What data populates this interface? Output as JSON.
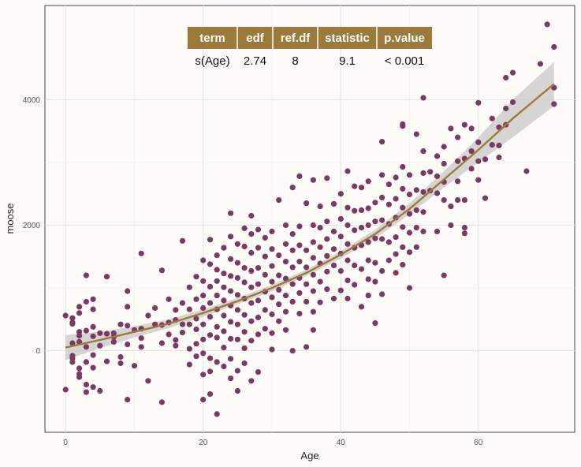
{
  "chart_data": {
    "type": "scatter",
    "xlabel": "Age",
    "ylabel": "moose",
    "xlim": [
      -3,
      74
    ],
    "ylim": [
      -1300,
      5500
    ],
    "x_ticks": [
      0,
      20,
      40,
      60
    ],
    "y_ticks": [
      0,
      2000,
      4000
    ],
    "grid": true,
    "colors": {
      "points": "#7b3a63",
      "smooth_line": "#9c7a3c",
      "ribbon": "#c8c8c8",
      "table_header": "#9c7a3c",
      "background": "#fdfcf8"
    },
    "smooth": {
      "x": [
        0,
        5,
        10,
        15,
        20,
        25,
        30,
        35,
        40,
        45,
        50,
        55,
        60,
        65,
        71
      ],
      "y": [
        50,
        170,
        300,
        430,
        600,
        790,
        1000,
        1240,
        1530,
        1860,
        2260,
        2730,
        3200,
        3700,
        4250
      ],
      "lower": [
        -150,
        40,
        210,
        360,
        540,
        740,
        950,
        1190,
        1470,
        1790,
        2170,
        2600,
        3000,
        3400,
        3900
      ],
      "upper": [
        250,
        300,
        390,
        500,
        660,
        840,
        1050,
        1290,
        1590,
        1930,
        2350,
        2860,
        3400,
        4000,
        4600
      ]
    },
    "table": {
      "columns": [
        "term",
        "edf",
        "ref.df",
        "statistic",
        "p.value"
      ],
      "rows": [
        [
          "s(Age)",
          "2.74",
          "8",
          "9.1",
          "< 0.001"
        ]
      ]
    },
    "points": [
      [
        0,
        560
      ],
      [
        0,
        -620
      ],
      [
        1,
        430
      ],
      [
        1,
        120
      ],
      [
        1,
        -80
      ],
      [
        1,
        -120
      ],
      [
        1,
        -180
      ],
      [
        1,
        450
      ],
      [
        1,
        520
      ],
      [
        2,
        300
      ],
      [
        2,
        140
      ],
      [
        2,
        -280
      ],
      [
        2,
        -420
      ],
      [
        2,
        -370
      ],
      [
        2,
        600
      ],
      [
        2,
        700
      ],
      [
        2,
        240
      ],
      [
        3,
        -540
      ],
      [
        3,
        -660
      ],
      [
        3,
        -180
      ],
      [
        3,
        60
      ],
      [
        3,
        320
      ],
      [
        3,
        780
      ],
      [
        3,
        1200
      ],
      [
        4,
        820
      ],
      [
        4,
        660
      ],
      [
        4,
        380
      ],
      [
        4,
        230
      ],
      [
        4,
        -70
      ],
      [
        4,
        -270
      ],
      [
        4,
        -580
      ],
      [
        5,
        280
      ],
      [
        5,
        80
      ],
      [
        5,
        -640
      ],
      [
        6,
        1180
      ],
      [
        6,
        270
      ],
      [
        6,
        -170
      ],
      [
        7,
        220
      ],
      [
        7,
        280
      ],
      [
        7,
        140
      ],
      [
        8,
        420
      ],
      [
        8,
        -100
      ],
      [
        8,
        -200
      ],
      [
        9,
        950
      ],
      [
        9,
        700
      ],
      [
        9,
        400
      ],
      [
        9,
        100
      ],
      [
        9,
        -780
      ],
      [
        10,
        330
      ],
      [
        10,
        -240
      ],
      [
        11,
        1550
      ],
      [
        11,
        350
      ],
      [
        11,
        200
      ],
      [
        11,
        60
      ],
      [
        12,
        560
      ],
      [
        12,
        -480
      ],
      [
        13,
        680
      ],
      [
        13,
        420
      ],
      [
        14,
        1280
      ],
      [
        14,
        410
      ],
      [
        14,
        120
      ],
      [
        14,
        -820
      ],
      [
        15,
        820
      ],
      [
        15,
        450
      ],
      [
        15,
        260
      ],
      [
        16,
        170
      ],
      [
        16,
        650
      ],
      [
        16,
        490
      ],
      [
        16,
        80
      ],
      [
        17,
        760
      ],
      [
        17,
        1750
      ],
      [
        17,
        420
      ],
      [
        17,
        290
      ],
      [
        18,
        30
      ],
      [
        18,
        420
      ],
      [
        18,
        660
      ],
      [
        18,
        1010
      ],
      [
        18,
        -220
      ],
      [
        19,
        1180
      ],
      [
        19,
        820
      ],
      [
        19,
        510
      ],
      [
        19,
        340
      ],
      [
        19,
        110
      ],
      [
        19,
        -90
      ],
      [
        20,
        1440
      ],
      [
        20,
        1110
      ],
      [
        20,
        880
      ],
      [
        20,
        680
      ],
      [
        20,
        420
      ],
      [
        20,
        180
      ],
      [
        20,
        -40
      ],
      [
        20,
        -380
      ],
      [
        20,
        -780
      ],
      [
        21,
        1770
      ],
      [
        21,
        1380
      ],
      [
        21,
        1020
      ],
      [
        21,
        760
      ],
      [
        21,
        540
      ],
      [
        21,
        250
      ],
      [
        21,
        -120
      ],
      [
        21,
        -330
      ],
      [
        21,
        -690
      ],
      [
        22,
        1520
      ],
      [
        22,
        1290
      ],
      [
        22,
        1110
      ],
      [
        22,
        880
      ],
      [
        22,
        660
      ],
      [
        22,
        380
      ],
      [
        22,
        210
      ],
      [
        22,
        -180
      ],
      [
        22,
        -1010
      ],
      [
        23,
        1640
      ],
      [
        23,
        1230
      ],
      [
        23,
        1010
      ],
      [
        23,
        800
      ],
      [
        23,
        560
      ],
      [
        23,
        310
      ],
      [
        23,
        50
      ],
      [
        23,
        -250
      ],
      [
        24,
        2190
      ],
      [
        24,
        1820
      ],
      [
        24,
        1460
      ],
      [
        24,
        1190
      ],
      [
        24,
        950
      ],
      [
        24,
        720
      ],
      [
        24,
        460
      ],
      [
        24,
        190
      ],
      [
        24,
        -130
      ],
      [
        24,
        -440
      ],
      [
        25,
        1700
      ],
      [
        25,
        1400
      ],
      [
        25,
        1160
      ],
      [
        25,
        890
      ],
      [
        25,
        650
      ],
      [
        25,
        420
      ],
      [
        25,
        180
      ],
      [
        25,
        -320
      ],
      [
        25,
        -640
      ],
      [
        26,
        1950
      ],
      [
        26,
        1660
      ],
      [
        26,
        1320
      ],
      [
        26,
        1090
      ],
      [
        26,
        830
      ],
      [
        26,
        570
      ],
      [
        26,
        300
      ],
      [
        26,
        40
      ],
      [
        26,
        -200
      ],
      [
        27,
        2150
      ],
      [
        27,
        1860
      ],
      [
        27,
        1560
      ],
      [
        27,
        1270
      ],
      [
        27,
        1010
      ],
      [
        27,
        760
      ],
      [
        27,
        470
      ],
      [
        27,
        160
      ],
      [
        27,
        -480
      ],
      [
        28,
        1930
      ],
      [
        28,
        1640
      ],
      [
        28,
        1320
      ],
      [
        28,
        1060
      ],
      [
        28,
        800
      ],
      [
        28,
        530
      ],
      [
        28,
        260
      ],
      [
        28,
        -340
      ],
      [
        29,
        1800
      ],
      [
        29,
        1500
      ],
      [
        29,
        1210
      ],
      [
        29,
        940
      ],
      [
        29,
        650
      ],
      [
        29,
        350
      ],
      [
        30,
        1900
      ],
      [
        30,
        1620
      ],
      [
        30,
        1350
      ],
      [
        30,
        1100
      ],
      [
        30,
        850
      ],
      [
        30,
        580
      ],
      [
        30,
        280
      ],
      [
        30,
        20
      ],
      [
        31,
        2400
      ],
      [
        31,
        1520
      ],
      [
        31,
        1200
      ],
      [
        31,
        970
      ],
      [
        31,
        740
      ],
      [
        31,
        470
      ],
      [
        32,
        2000
      ],
      [
        32,
        1700
      ],
      [
        32,
        1420
      ],
      [
        32,
        1150
      ],
      [
        32,
        880
      ],
      [
        32,
        620
      ],
      [
        32,
        330
      ],
      [
        33,
        2600
      ],
      [
        33,
        1860
      ],
      [
        33,
        1600
      ],
      [
        33,
        1330
      ],
      [
        33,
        1060
      ],
      [
        33,
        780
      ],
      [
        33,
        0
      ],
      [
        34,
        2780
      ],
      [
        34,
        1980
      ],
      [
        34,
        1680
      ],
      [
        34,
        1420
      ],
      [
        34,
        1160
      ],
      [
        34,
        920
      ],
      [
        34,
        590
      ],
      [
        35,
        2350
      ],
      [
        35,
        1600
      ],
      [
        35,
        1330
      ],
      [
        35,
        1060
      ],
      [
        35,
        780
      ],
      [
        35,
        60
      ],
      [
        36,
        2720
      ],
      [
        36,
        2000
      ],
      [
        36,
        1730
      ],
      [
        36,
        1480
      ],
      [
        36,
        1210
      ],
      [
        36,
        950
      ],
      [
        36,
        620
      ],
      [
        36,
        330
      ],
      [
        37,
        2300
      ],
      [
        37,
        1960
      ],
      [
        37,
        1650
      ],
      [
        37,
        1390
      ],
      [
        37,
        1100
      ],
      [
        37,
        770
      ],
      [
        38,
        2750
      ],
      [
        38,
        2060
      ],
      [
        38,
        1780
      ],
      [
        38,
        1510
      ],
      [
        38,
        1260
      ],
      [
        38,
        980
      ],
      [
        39,
        2340
      ],
      [
        39,
        1900
      ],
      [
        39,
        1620
      ],
      [
        39,
        1360
      ],
      [
        39,
        830
      ],
      [
        40,
        2500
      ],
      [
        40,
        2100
      ],
      [
        40,
        1820
      ],
      [
        40,
        1550
      ],
      [
        40,
        1270
      ],
      [
        40,
        960
      ],
      [
        41,
        2860
      ],
      [
        41,
        2280
      ],
      [
        41,
        2000
      ],
      [
        41,
        1700
      ],
      [
        41,
        1440
      ],
      [
        41,
        1120
      ],
      [
        41,
        830
      ],
      [
        42,
        2620
      ],
      [
        42,
        2230
      ],
      [
        42,
        1920
      ],
      [
        42,
        1640
      ],
      [
        42,
        1360
      ],
      [
        42,
        1050
      ],
      [
        43,
        2600
      ],
      [
        43,
        2240
      ],
      [
        43,
        1960
      ],
      [
        43,
        1680
      ],
      [
        43,
        1300
      ],
      [
        43,
        700
      ],
      [
        44,
        2700
      ],
      [
        44,
        2270
      ],
      [
        44,
        2000
      ],
      [
        44,
        1730
      ],
      [
        44,
        1440
      ],
      [
        44,
        1140
      ],
      [
        44,
        880
      ],
      [
        45,
        2360
      ],
      [
        45,
        2060
      ],
      [
        45,
        1790
      ],
      [
        45,
        1400
      ],
      [
        45,
        1100
      ],
      [
        45,
        440
      ],
      [
        46,
        3330
      ],
      [
        46,
        2800
      ],
      [
        46,
        2440
      ],
      [
        46,
        2080
      ],
      [
        46,
        1780
      ],
      [
        46,
        1270
      ],
      [
        46,
        900
      ],
      [
        47,
        2650
      ],
      [
        47,
        2330
      ],
      [
        47,
        2020
      ],
      [
        47,
        1730
      ],
      [
        47,
        1440
      ],
      [
        48,
        2760
      ],
      [
        48,
        2420
      ],
      [
        48,
        2120
      ],
      [
        48,
        1810
      ],
      [
        48,
        1540
      ],
      [
        48,
        1240
      ],
      [
        49,
        3610
      ],
      [
        49,
        3580
      ],
      [
        49,
        2930
      ],
      [
        49,
        2580
      ],
      [
        49,
        2280
      ],
      [
        49,
        1970
      ],
      [
        49,
        1650
      ],
      [
        49,
        1370
      ],
      [
        50,
        2800
      ],
      [
        50,
        2490
      ],
      [
        50,
        2180
      ],
      [
        50,
        1880
      ],
      [
        50,
        1570
      ],
      [
        50,
        1000
      ],
      [
        51,
        3450
      ],
      [
        51,
        2560
      ],
      [
        51,
        2240
      ],
      [
        51,
        1960
      ],
      [
        51,
        1650
      ],
      [
        52,
        4030
      ],
      [
        52,
        3180
      ],
      [
        52,
        2830
      ],
      [
        52,
        2530
      ],
      [
        52,
        2210
      ],
      [
        52,
        1900
      ],
      [
        53,
        2850
      ],
      [
        53,
        2550
      ],
      [
        54,
        3100
      ],
      [
        54,
        2780
      ],
      [
        54,
        2510
      ],
      [
        54,
        1900
      ],
      [
        55,
        3250
      ],
      [
        55,
        2980
      ],
      [
        55,
        2690
      ],
      [
        55,
        2400
      ],
      [
        55,
        1200
      ],
      [
        56,
        3540
      ],
      [
        56,
        2300
      ],
      [
        56,
        2000
      ],
      [
        57,
        3400
      ],
      [
        57,
        3020
      ],
      [
        57,
        2700
      ],
      [
        57,
        2400
      ],
      [
        58,
        3600
      ],
      [
        58,
        3060
      ],
      [
        58,
        2400
      ],
      [
        58,
        1960
      ],
      [
        58,
        1870
      ],
      [
        59,
        3540
      ],
      [
        59,
        3180
      ],
      [
        59,
        2900
      ],
      [
        60,
        3950
      ],
      [
        60,
        3320
      ],
      [
        60,
        3020
      ],
      [
        60,
        2720
      ],
      [
        61,
        3050
      ],
      [
        61,
        2430
      ],
      [
        62,
        3700
      ],
      [
        62,
        3280
      ],
      [
        63,
        3270
      ],
      [
        63,
        3080
      ],
      [
        63,
        3560
      ],
      [
        64,
        3600
      ],
      [
        64,
        3860
      ],
      [
        64,
        4350
      ],
      [
        65,
        4430
      ],
      [
        65,
        3960
      ],
      [
        67,
        2860
      ],
      [
        69,
        4570
      ],
      [
        70,
        5200
      ],
      [
        71,
        4840
      ],
      [
        71,
        4190
      ],
      [
        71,
        3930
      ]
    ]
  }
}
